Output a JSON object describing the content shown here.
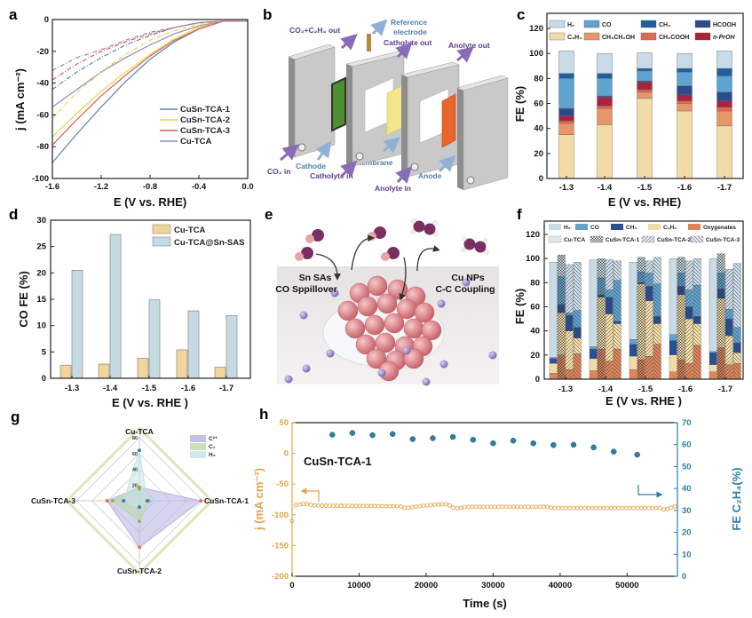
{
  "panel_labels": {
    "a": "a",
    "b": "b",
    "c": "c",
    "d": "d",
    "e": "e",
    "f": "f",
    "g": "g",
    "h": "h"
  },
  "panel_b": {
    "labels": {
      "co2_c2h4_out": "CO₂+C₂H₄ out",
      "reference": "Reference",
      "electrode": "electrode",
      "catholyte_out": "Catholyte out",
      "anolyte_out": "Anolyte out",
      "co2_in": "CO₂ in",
      "cathode": "Cathode",
      "catholyte_in": "Catholyte in",
      "membrane": "Membrane",
      "anode": "Anode",
      "anolyte_in": "Anolyte in"
    },
    "colors": {
      "cathode": "#4f8f2e",
      "membrane": "#f4e48a",
      "anode": "#e8662e",
      "plate": "#c9c9c9"
    }
  },
  "panel_e": {
    "left_line1": "Sn SAs",
    "left_line2": "CO Sppillover",
    "right_line1": "Cu NPs",
    "right_line2": "C-C Coupling"
  },
  "chart_data": [
    {
      "panel": "a",
      "type": "line",
      "xlabel": "E (V vs. RHE)",
      "ylabel": "j (mA cm⁻²)",
      "xlim": [
        -1.6,
        0.0
      ],
      "ylim": [
        -100,
        0
      ],
      "xticks": [
        "-1.6",
        "-1.2",
        "-0.8",
        "-0.4",
        "0.0"
      ],
      "yticks": [
        "0",
        "-20",
        "-40",
        "-60",
        "-80",
        "-100"
      ],
      "legend_position": "lower-right",
      "x": [
        -1.6,
        -1.4,
        -1.2,
        -1.0,
        -0.8,
        -0.6,
        -0.4,
        -0.2,
        0.0
      ],
      "series": [
        {
          "name": "CuSn-TCA-1",
          "color": "#5b82b8",
          "style": "solid",
          "y": [
            -90,
            -72,
            -55,
            -39,
            -25,
            -14,
            -6,
            -1,
            -1
          ]
        },
        {
          "name": "CuSn-TCA-2",
          "color": "#e8d44a",
          "style": "solid",
          "y": [
            -74,
            -59,
            -45,
            -33,
            -22,
            -12,
            -5,
            -1,
            -1
          ]
        },
        {
          "name": "CuSn-TCA-3",
          "color": "#d9604f",
          "style": "solid",
          "y": [
            -79,
            -63,
            -48,
            -35,
            -23,
            -13,
            -6,
            -1,
            -1
          ]
        },
        {
          "name": "Cu-TCA",
          "color": "#9b86b8",
          "style": "solid",
          "y": [
            -55,
            -44,
            -33,
            -24,
            -16,
            -9,
            -4,
            -1,
            -1
          ]
        },
        {
          "color": "#5b82b8",
          "style": "dashdot",
          "y": [
            -44,
            -33,
            -24,
            -16,
            -10,
            -5,
            -2,
            -1,
            -1
          ]
        },
        {
          "color": "#e8d44a",
          "style": "dashdot",
          "y": [
            -62,
            -46,
            -33,
            -22,
            -13,
            -7,
            -3,
            -1,
            -1
          ]
        },
        {
          "color": "#d9604f",
          "style": "dashdot",
          "y": [
            -38,
            -28,
            -20,
            -14,
            -9,
            -5,
            -2,
            -1,
            -1
          ]
        },
        {
          "color": "#9b86b8",
          "style": "dashdot",
          "y": [
            -32,
            -24,
            -19,
            -13,
            -8,
            -5,
            -2,
            -1,
            -1
          ]
        }
      ]
    },
    {
      "panel": "c",
      "type": "bar",
      "stacked": true,
      "xlabel": "E (V vs. RHE)",
      "ylabel": "FE (%)",
      "ylim": [
        0,
        130
      ],
      "yticks": [
        "0",
        "20",
        "40",
        "60",
        "80",
        "100",
        "120"
      ],
      "categories": [
        "-1.3",
        "-1.4",
        "-1.5",
        "-1.6",
        "-1.7"
      ],
      "legend_position": "top",
      "legend_order": [
        "H₂",
        "CO",
        "CH₄",
        "HCOOH",
        "C₂H₄",
        "CH₃CH₂OH",
        "CH₃COOH",
        "n-PrOH"
      ],
      "series": [
        {
          "name": "C₂H₄",
          "color": "#f2dca6",
          "values": [
            35,
            43,
            64,
            54,
            42
          ]
        },
        {
          "name": "CH₃CH₂OH",
          "color": "#e8956a",
          "values": [
            9,
            13,
            5,
            6,
            12
          ]
        },
        {
          "name": "CH₃COOH",
          "color": "#e06a50",
          "values": [
            2,
            2,
            2,
            2,
            3
          ]
        },
        {
          "name": "n-PrOH",
          "color": "#a8233e",
          "values": [
            4,
            7,
            6,
            5,
            5
          ]
        },
        {
          "name": "HCOOH",
          "color": "#2d4a8c",
          "values": [
            6,
            1,
            1,
            7,
            7
          ]
        },
        {
          "name": "CO",
          "color": "#5fa3d0",
          "values": [
            24,
            14,
            8,
            11,
            13
          ]
        },
        {
          "name": "CH₄",
          "color": "#1f5f9e",
          "values": [
            4,
            4,
            2,
            3,
            6
          ]
        },
        {
          "name": "H₂",
          "color": "#c9dbe6",
          "values": [
            18,
            16,
            12.5,
            12,
            14
          ]
        }
      ]
    },
    {
      "panel": "d",
      "type": "bar",
      "xlabel": "E (V vs. RHE )",
      "ylabel": "CO FE (%)",
      "ylim": [
        0,
        30
      ],
      "yticks": [
        "0",
        "5",
        "10",
        "15",
        "20",
        "25",
        "30"
      ],
      "categories": [
        "-1.3",
        "-1.4",
        "-1.5",
        "-1.6",
        "-1.7"
      ],
      "legend_position": "top-right",
      "series": [
        {
          "name": "Cu-TCA",
          "color": "#f2d59a",
          "values": [
            2.5,
            2.7,
            3.8,
            5.4,
            2.1
          ]
        },
        {
          "name": "Cu-TCA@Sn-SAS",
          "color": "#c5dbe3",
          "values": [
            20.5,
            27.3,
            14.9,
            12.8,
            11.9
          ]
        }
      ]
    },
    {
      "panel": "f",
      "type": "bar",
      "stacked": true,
      "xlabel": "E (V vs. RHE )",
      "ylabel": "FE (%)",
      "ylim": [
        0,
        130
      ],
      "yticks": [
        "0",
        "20",
        "40",
        "60",
        "80",
        "100",
        "120"
      ],
      "categories": [
        "-1.3",
        "-1.4",
        "-1.5",
        "-1.6",
        "-1.7"
      ],
      "legend_position": "top",
      "products": [
        {
          "name": "Oxygenates",
          "color": "#e08458"
        },
        {
          "name": "C₂H₄",
          "color": "#f2dca6"
        },
        {
          "name": "CH₄",
          "color": "#2a4f96"
        },
        {
          "name": "CO",
          "color": "#5fa3d0"
        },
        {
          "name": "H₂",
          "color": "#c9dbe6"
        }
      ],
      "legend_order": [
        "H₂",
        "CO",
        "CH₄",
        "C₂H₄",
        "Oxygenates"
      ],
      "samples": [
        {
          "name": "Cu-TCA",
          "pattern": "none",
          "values": [
            [
              5,
              8,
              4,
              1,
              79
            ],
            [
              7,
              10,
              8,
              2,
              72
            ],
            [
              8,
              11,
              10,
              4,
              64
            ],
            [
              6,
              14,
              12,
              5,
              63
            ],
            [
              6,
              6,
              10,
              1,
              77
            ]
          ]
        },
        {
          "name": "CuSn-TCA-1",
          "pattern": "crosshatch",
          "values": [
            [
              20,
              35,
              7,
              23,
              18
            ],
            [
              25,
              43,
              2,
              14,
              16
            ],
            [
              16,
              63,
              1,
              9,
              12
            ],
            [
              16,
              54,
              7,
              11,
              13
            ],
            [
              26,
              41,
              8,
              13,
              16
            ]
          ]
        },
        {
          "name": "CuSn-TCA-2",
          "pattern": "diagonal",
          "values": [
            [
              8,
              32,
              13,
              2,
              40
            ],
            [
              15,
              39,
              14,
              6,
              25
            ],
            [
              19,
              46,
              12,
              11,
              10
            ],
            [
              13,
              37,
              10,
              14,
              24
            ],
            [
              12,
              24,
              14,
              8,
              33
            ]
          ]
        },
        {
          "name": "CuSn-TCA-3",
          "pattern": "antidiagonal",
          "values": [
            [
              21,
              13,
              9,
              14,
              40
            ],
            [
              25,
              21,
              2,
              34,
              16
            ],
            [
              29,
              17,
              6,
              27,
              22
            ],
            [
              28,
              18,
              6,
              26,
              22
            ],
            [
              13,
              9,
              8,
              13,
              53
            ]
          ]
        }
      ]
    },
    {
      "panel": "g",
      "type": "radar",
      "axes": [
        "Cu-TCA",
        "CuSn-TCA-1",
        "CuSn-TCA-2",
        "CuSn-TCA-3"
      ],
      "rlim": [
        0,
        80
      ],
      "rticks": [
        "20",
        "40",
        "60",
        "80"
      ],
      "legend_position": "top-right",
      "series": [
        {
          "name": "C²⁺",
          "fill": "#b4b2e2",
          "point": "#e07b4a",
          "values": [
            17,
            78,
            59,
            41
          ]
        },
        {
          "name": "C₁",
          "fill": "#bcd8a8",
          "point": "#9bb35a",
          "values": [
            15,
            12,
            26,
            34
          ]
        },
        {
          "name": "H₂",
          "fill": "#c2e4e6",
          "point": "#3c7fb0",
          "values": [
            64,
            10,
            8,
            20
          ]
        }
      ]
    },
    {
      "panel": "h",
      "type": "scatter",
      "annotation": "CuSn-TCA-1",
      "xlabel": "Time (s)",
      "ylabel_left": "j (mA cm⁻²)",
      "ylabel_right": "FE C₂H₄(%)",
      "xlim": [
        0,
        57500
      ],
      "ylim_left": [
        -200,
        50
      ],
      "ylim_right": [
        0,
        70
      ],
      "xticks": [
        "0",
        "10000",
        "20000",
        "30000",
        "40000",
        "50000"
      ],
      "yticks_left": [
        "50",
        "0",
        "-50",
        "-100",
        "-150",
        "-200"
      ],
      "yticks_right": [
        "70",
        "60",
        "50",
        "40",
        "30",
        "20",
        "10",
        "0"
      ],
      "colors": {
        "left": "#e8a34a",
        "right": "#2f7fa5"
      },
      "j_series": [
        [
          0,
          -110
        ],
        [
          500,
          -84
        ],
        [
          2000,
          -82
        ],
        [
          3500,
          -85
        ],
        [
          16000,
          -86
        ],
        [
          17000,
          -89
        ],
        [
          19000,
          -86
        ],
        [
          22000,
          -83
        ],
        [
          23300,
          -83
        ],
        [
          24300,
          -90
        ],
        [
          26000,
          -87
        ],
        [
          38000,
          -87
        ],
        [
          38800,
          -89
        ],
        [
          55000,
          -89
        ],
        [
          55600,
          -92
        ],
        [
          57500,
          -85
        ]
      ],
      "fe_series": [
        [
          6000,
          64.5
        ],
        [
          9000,
          65.3
        ],
        [
          12000,
          64.3
        ],
        [
          15000,
          64.8
        ],
        [
          18000,
          62.5
        ],
        [
          21000,
          62.9
        ],
        [
          24000,
          63.5
        ],
        [
          27000,
          62.2
        ],
        [
          30000,
          60.6
        ],
        [
          33000,
          61.8
        ],
        [
          36000,
          60.6
        ],
        [
          39000,
          59.8
        ],
        [
          42000,
          59.9
        ],
        [
          45000,
          58.7
        ],
        [
          48000,
          56.8
        ],
        [
          51500,
          55.4
        ]
      ]
    }
  ]
}
